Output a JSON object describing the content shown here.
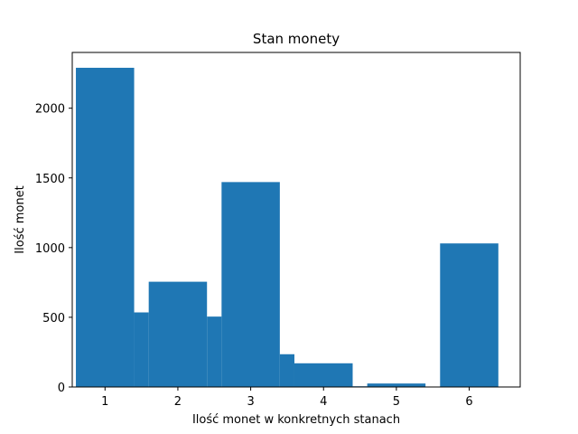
{
  "chart_data": {
    "type": "bar",
    "title": "Stan monety",
    "xlabel": "Ilość monet w konkretnych stanach",
    "ylabel": "Ilość monet",
    "xlim": [
      0.55,
      6.7
    ],
    "ylim": [
      0,
      2400
    ],
    "xticks": [
      1,
      2,
      3,
      4,
      5,
      6
    ],
    "yticks": [
      0,
      500,
      1000,
      1500,
      2000
    ],
    "grid": false,
    "bar_color": "#1f77b4",
    "bars": [
      {
        "x_start": 0.6,
        "x_end": 1.4,
        "value": 2290
      },
      {
        "x_start": 1.4,
        "x_end": 1.6,
        "value": 535
      },
      {
        "x_start": 1.6,
        "x_end": 2.4,
        "value": 755
      },
      {
        "x_start": 2.4,
        "x_end": 2.6,
        "value": 505
      },
      {
        "x_start": 2.6,
        "x_end": 3.4,
        "value": 1470
      },
      {
        "x_start": 3.4,
        "x_end": 3.6,
        "value": 235
      },
      {
        "x_start": 3.6,
        "x_end": 4.4,
        "value": 170
      },
      {
        "x_start": 4.4,
        "x_end": 4.6,
        "value": 5
      },
      {
        "x_start": 4.6,
        "x_end": 5.4,
        "value": 25
      },
      {
        "x_start": 5.4,
        "x_end": 5.6,
        "value": 0
      },
      {
        "x_start": 5.6,
        "x_end": 6.4,
        "value": 1030
      }
    ]
  }
}
